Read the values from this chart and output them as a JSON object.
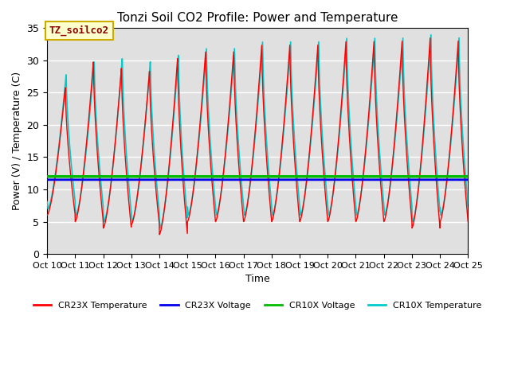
{
  "title": "Tonzi Soil CO2 Profile: Power and Temperature",
  "xlabel": "Time",
  "ylabel": "Power (V) / Temperature (C)",
  "ylim": [
    0,
    35
  ],
  "xtick_labels": [
    "Oct 10",
    "Oct 11",
    "Oct 12",
    "Oct 13",
    "Oct 14",
    "Oct 15",
    "Oct 16",
    "Oct 17",
    "Oct 18",
    "Oct 19",
    "Oct 20",
    "Oct 21",
    "Oct 22",
    "Oct 23",
    "Oct 24",
    "Oct 25"
  ],
  "cr23x_voltage": 11.5,
  "cr10x_voltage": 12.0,
  "cr23x_color": "#FF0000",
  "cr10x_color": "#00CCCC",
  "cr23x_voltage_color": "#0000EE",
  "cr10x_voltage_color": "#00BB00",
  "annotation_text": "TZ_soilco2",
  "annotation_box_facecolor": "#FFFFCC",
  "annotation_box_edgecolor": "#CCAA00",
  "annotation_text_color": "#880000",
  "bg_band_color": "#E0E0E0",
  "legend_items": [
    "CR23X Temperature",
    "CR23X Voltage",
    "CR10X Voltage",
    "CR10X Temperature"
  ],
  "yticks": [
    0,
    5,
    10,
    15,
    20,
    25,
    30,
    35
  ],
  "figsize": [
    6.4,
    4.8
  ],
  "dpi": 100
}
